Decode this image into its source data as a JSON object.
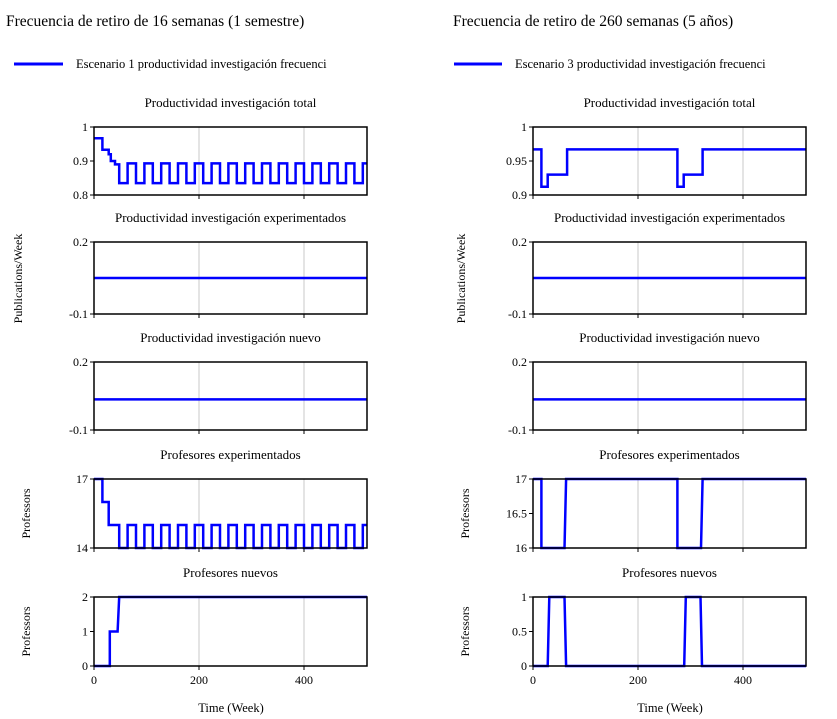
{
  "chart_data": [
    {
      "type": "line",
      "column_title": "Frecuencia de retiro de 16 semanas (1 semestre)",
      "legend": "Escenario 1 productividad investigación frecuenci",
      "series_color": "#0000ff",
      "xlabel": "Time (Week)",
      "x_ticks": [
        "0",
        "200",
        "400"
      ],
      "xlim": [
        0,
        520
      ],
      "shared_ylabel": "Publications/Week",
      "panels": [
        {
          "title": "Productividad investigación total",
          "ylabel": "Publications/Week",
          "ylim": [
            0.8,
            1
          ],
          "y_ticks": [
            "1",
            "0.9",
            "0.8"
          ],
          "points": [
            [
              0,
              0.967
            ],
            [
              16,
              0.967
            ],
            [
              16,
              0.933
            ],
            [
              24,
              0.933
            ],
            [
              28,
              0.933
            ],
            [
              28,
              0.92
            ],
            [
              32,
              0.92
            ],
            [
              32,
              0.9
            ],
            [
              40,
              0.9
            ],
            [
              40,
              0.89
            ],
            [
              48,
              0.89
            ],
            [
              48,
              0.835
            ],
            [
              64,
              0.835
            ],
            [
              64,
              0.893
            ],
            [
              80,
              0.893
            ],
            [
              80,
              0.835
            ],
            [
              96,
              0.835
            ],
            [
              96,
              0.893
            ],
            [
              112,
              0.893
            ],
            [
              112,
              0.835
            ],
            [
              128,
              0.835
            ],
            [
              128,
              0.893
            ],
            [
              144,
              0.893
            ],
            [
              144,
              0.835
            ],
            [
              160,
              0.835
            ],
            [
              160,
              0.893
            ],
            [
              176,
              0.893
            ],
            [
              176,
              0.835
            ],
            [
              192,
              0.835
            ],
            [
              192,
              0.893
            ],
            [
              208,
              0.893
            ],
            [
              208,
              0.835
            ],
            [
              224,
              0.835
            ],
            [
              224,
              0.893
            ],
            [
              240,
              0.893
            ],
            [
              240,
              0.835
            ],
            [
              256,
              0.835
            ],
            [
              256,
              0.893
            ],
            [
              272,
              0.893
            ],
            [
              272,
              0.835
            ],
            [
              288,
              0.835
            ],
            [
              288,
              0.893
            ],
            [
              304,
              0.893
            ],
            [
              304,
              0.835
            ],
            [
              320,
              0.835
            ],
            [
              320,
              0.893
            ],
            [
              336,
              0.893
            ],
            [
              336,
              0.835
            ],
            [
              352,
              0.835
            ],
            [
              352,
              0.893
            ],
            [
              368,
              0.893
            ],
            [
              368,
              0.835
            ],
            [
              384,
              0.835
            ],
            [
              384,
              0.893
            ],
            [
              400,
              0.893
            ],
            [
              400,
              0.835
            ],
            [
              416,
              0.835
            ],
            [
              416,
              0.893
            ],
            [
              432,
              0.893
            ],
            [
              432,
              0.835
            ],
            [
              448,
              0.835
            ],
            [
              448,
              0.893
            ],
            [
              464,
              0.893
            ],
            [
              464,
              0.835
            ],
            [
              480,
              0.835
            ],
            [
              480,
              0.893
            ],
            [
              496,
              0.893
            ],
            [
              496,
              0.835
            ],
            [
              512,
              0.835
            ],
            [
              512,
              0.893
            ],
            [
              520,
              0.893
            ]
          ]
        },
        {
          "title": "Productividad investigación experimentados",
          "ylabel": "Publications/Week",
          "ylim": [
            -0.1,
            0.2
          ],
          "y_ticks": [
            "0.2",
            "-0.1"
          ],
          "points": [
            [
              0,
              0.05
            ],
            [
              520,
              0.05
            ]
          ]
        },
        {
          "title": "Productividad investigación nuevo",
          "ylabel": "Publications/Week",
          "ylim": [
            -0.1,
            0.2
          ],
          "y_ticks": [
            "0.2",
            "-0.1"
          ],
          "points": [
            [
              0,
              0.035
            ],
            [
              520,
              0.035
            ]
          ]
        },
        {
          "title": "Profesores experimentados",
          "ylabel": "Professors",
          "ylim": [
            14,
            17
          ],
          "y_ticks": [
            "17",
            "14"
          ],
          "points": [
            [
              0,
              17
            ],
            [
              16,
              17
            ],
            [
              16,
              16
            ],
            [
              28,
              16
            ],
            [
              28,
              15
            ],
            [
              48,
              15
            ],
            [
              48,
              14
            ],
            [
              64,
              14
            ],
            [
              64,
              15
            ],
            [
              80,
              15
            ],
            [
              80,
              14
            ],
            [
              96,
              14
            ],
            [
              96,
              15
            ],
            [
              112,
              15
            ],
            [
              112,
              14
            ],
            [
              128,
              14
            ],
            [
              128,
              15
            ],
            [
              144,
              15
            ],
            [
              144,
              14
            ],
            [
              160,
              14
            ],
            [
              160,
              15
            ],
            [
              176,
              15
            ],
            [
              176,
              14
            ],
            [
              192,
              14
            ],
            [
              192,
              15
            ],
            [
              208,
              15
            ],
            [
              208,
              14
            ],
            [
              224,
              14
            ],
            [
              224,
              15
            ],
            [
              240,
              15
            ],
            [
              240,
              14
            ],
            [
              256,
              14
            ],
            [
              256,
              15
            ],
            [
              272,
              15
            ],
            [
              272,
              14
            ],
            [
              288,
              14
            ],
            [
              288,
              15
            ],
            [
              304,
              15
            ],
            [
              304,
              14
            ],
            [
              320,
              14
            ],
            [
              320,
              15
            ],
            [
              336,
              15
            ],
            [
              336,
              14
            ],
            [
              352,
              14
            ],
            [
              352,
              15
            ],
            [
              368,
              15
            ],
            [
              368,
              14
            ],
            [
              384,
              14
            ],
            [
              384,
              15
            ],
            [
              400,
              15
            ],
            [
              400,
              14
            ],
            [
              416,
              14
            ],
            [
              416,
              15
            ],
            [
              432,
              15
            ],
            [
              432,
              14
            ],
            [
              448,
              14
            ],
            [
              448,
              15
            ],
            [
              464,
              15
            ],
            [
              464,
              14
            ],
            [
              480,
              14
            ],
            [
              480,
              15
            ],
            [
              496,
              15
            ],
            [
              496,
              14
            ],
            [
              512,
              14
            ],
            [
              512,
              15
            ],
            [
              520,
              15
            ]
          ]
        },
        {
          "title": "Profesores nuevos",
          "ylabel": "Professors",
          "ylim": [
            0,
            2
          ],
          "y_ticks": [
            "2",
            "1",
            "0"
          ],
          "points": [
            [
              0,
              0
            ],
            [
              30,
              0
            ],
            [
              30,
              1
            ],
            [
              45,
              1
            ],
            [
              48,
              2
            ],
            [
              520,
              2
            ]
          ]
        }
      ]
    },
    {
      "type": "line",
      "column_title": "Frecuencia de retiro de 260 semanas (5 años)",
      "legend": "Escenario 3 productividad investigación frecuenci",
      "series_color": "#0000ff",
      "xlabel": "Time (Week)",
      "x_ticks": [
        "0",
        "200",
        "400"
      ],
      "xlim": [
        0,
        520
      ],
      "shared_ylabel": "Publications/Week",
      "panels": [
        {
          "title": "Productividad investigación total",
          "ylabel": "Publications/Week",
          "ylim": [
            0.9,
            1
          ],
          "y_ticks": [
            "1",
            "0.95",
            "0.9"
          ],
          "points": [
            [
              0,
              0.967
            ],
            [
              16,
              0.967
            ],
            [
              16,
              0.912
            ],
            [
              28,
              0.912
            ],
            [
              28,
              0.93
            ],
            [
              65,
              0.93
            ],
            [
              65,
              0.967
            ],
            [
              275,
              0.967
            ],
            [
              275,
              0.912
            ],
            [
              287,
              0.912
            ],
            [
              287,
              0.93
            ],
            [
              323,
              0.93
            ],
            [
              323,
              0.967
            ],
            [
              520,
              0.967
            ]
          ]
        },
        {
          "title": "Productividad investigación experimentados",
          "ylabel": "Publications/Week",
          "ylim": [
            -0.1,
            0.2
          ],
          "y_ticks": [
            "0.2",
            "-0.1"
          ],
          "points": [
            [
              0,
              0.05
            ],
            [
              520,
              0.05
            ]
          ]
        },
        {
          "title": "Productividad investigación nuevo",
          "ylabel": "Publications/Week",
          "ylim": [
            -0.1,
            0.2
          ],
          "y_ticks": [
            "0.2",
            "-0.1"
          ],
          "points": [
            [
              0,
              0.035
            ],
            [
              520,
              0.035
            ]
          ]
        },
        {
          "title": "Profesores experimentados",
          "ylabel": "Professors",
          "ylim": [
            16,
            17
          ],
          "y_ticks": [
            "17",
            "16.5",
            "16"
          ],
          "points": [
            [
              0,
              17
            ],
            [
              16,
              17
            ],
            [
              16,
              16
            ],
            [
              60,
              16
            ],
            [
              63,
              17
            ],
            [
              275,
              17
            ],
            [
              275,
              16
            ],
            [
              320,
              16
            ],
            [
              323,
              17
            ],
            [
              520,
              17
            ]
          ]
        },
        {
          "title": "Profesores nuevos",
          "ylabel": "Professors",
          "ylim": [
            0,
            1
          ],
          "y_ticks": [
            "1",
            "0.5",
            "0"
          ],
          "points": [
            [
              0,
              0
            ],
            [
              28,
              0
            ],
            [
              31,
              1
            ],
            [
              60,
              1
            ],
            [
              63,
              0
            ],
            [
              288,
              0
            ],
            [
              291,
              1
            ],
            [
              319,
              1
            ],
            [
              322,
              0
            ],
            [
              520,
              0
            ]
          ]
        }
      ]
    }
  ]
}
